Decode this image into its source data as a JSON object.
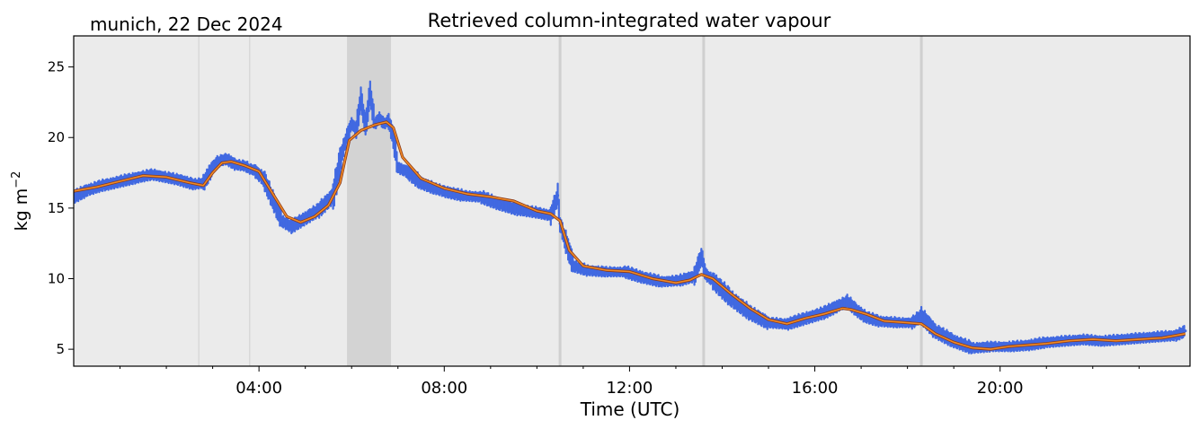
{
  "header": {
    "location_date": "munich, 22 Dec 2024",
    "title": "Retrieved column-integrated water vapour"
  },
  "chart_data": {
    "type": "scatter",
    "title": "Retrieved column-integrated water vapour",
    "subtitle": "munich, 22 Dec 2024",
    "xlabel": "Time (UTC)",
    "ylabel_main": "kg m",
    "ylabel_exp": "−2",
    "x_unit": "hours UTC",
    "xlim": [
      0,
      24.1
    ],
    "ylim": [
      3.8,
      27.2
    ],
    "x_ticks": [
      4,
      8,
      12,
      16,
      20
    ],
    "x_tick_labels": [
      "04:00",
      "08:00",
      "12:00",
      "16:00",
      "20:00"
    ],
    "y_ticks": [
      5,
      10,
      15,
      20,
      25
    ],
    "y_tick_labels": [
      "5",
      "10",
      "15",
      "20",
      "25"
    ],
    "grid": false,
    "background_color": "#ebebeb",
    "flagged_span": {
      "start": 5.9,
      "end": 6.85,
      "color": "#d3d3d3"
    },
    "gap_lines": [
      {
        "x": 2.7,
        "width": "thin"
      },
      {
        "x": 3.8,
        "width": "thin"
      },
      {
        "x": 10.5,
        "width": "thick"
      },
      {
        "x": 13.6,
        "width": "thick"
      },
      {
        "x": 18.3,
        "width": "thick"
      }
    ],
    "series": [
      {
        "role": "retrieval",
        "style": "scatter",
        "color": "#4169e1",
        "x": [
          0.0,
          0.3,
          0.6,
          1.0,
          1.4,
          1.7,
          2.0,
          2.3,
          2.6,
          2.8,
          3.0,
          3.1,
          3.3,
          3.5,
          3.7,
          3.8,
          3.9,
          4.1,
          4.3,
          4.5,
          4.7,
          5.0,
          5.3,
          5.6,
          5.8,
          5.9,
          6.0,
          6.1,
          6.2,
          6.3,
          6.4,
          6.5,
          6.6,
          6.7,
          6.8,
          6.9,
          7.0,
          7.2,
          7.5,
          7.8,
          8.0,
          8.4,
          8.8,
          9.2,
          9.6,
          10.0,
          10.3,
          10.45,
          10.5,
          10.6,
          10.8,
          11.1,
          11.5,
          11.9,
          12.3,
          12.7,
          13.1,
          13.4,
          13.55,
          13.65,
          13.8,
          14.2,
          14.6,
          15.0,
          15.4,
          15.8,
          16.2,
          16.5,
          16.7,
          16.9,
          17.1,
          17.4,
          17.8,
          18.1,
          18.3,
          18.6,
          19.0,
          19.4,
          19.8,
          20.2,
          20.6,
          21.0,
          21.4,
          21.8,
          22.2,
          22.6,
          23.0,
          23.4,
          23.8,
          24.0
        ],
        "y": [
          15.8,
          16.3,
          16.6,
          16.9,
          17.2,
          17.4,
          17.2,
          17.0,
          16.7,
          16.8,
          17.9,
          18.3,
          18.5,
          18.1,
          18.0,
          17.8,
          17.7,
          17.1,
          15.6,
          14.1,
          13.7,
          14.3,
          14.9,
          15.9,
          19.0,
          20.1,
          21.0,
          20.6,
          22.8,
          20.8,
          23.2,
          21.0,
          21.4,
          21.0,
          21.2,
          20.0,
          17.9,
          17.6,
          16.8,
          16.4,
          16.2,
          15.9,
          15.8,
          15.3,
          14.9,
          14.7,
          14.5,
          15.9,
          13.9,
          12.9,
          10.9,
          10.6,
          10.5,
          10.5,
          10.1,
          9.8,
          9.9,
          10.2,
          11.6,
          10.3,
          9.9,
          8.6,
          7.6,
          6.9,
          6.8,
          7.2,
          7.6,
          8.1,
          8.4,
          7.8,
          7.3,
          7.0,
          6.9,
          6.9,
          7.4,
          6.3,
          5.6,
          5.1,
          5.2,
          5.2,
          5.3,
          5.5,
          5.6,
          5.7,
          5.6,
          5.7,
          5.8,
          5.9,
          6.0,
          6.3
        ]
      },
      {
        "role": "smoothed",
        "style": "line",
        "color": "#f08a24",
        "x": [
          0.0,
          0.5,
          1.0,
          1.5,
          2.0,
          2.5,
          2.8,
          3.0,
          3.2,
          3.4,
          3.7,
          4.0,
          4.3,
          4.6,
          4.9,
          5.2,
          5.5,
          5.75,
          5.95,
          6.2,
          6.5,
          6.75,
          6.9,
          7.1,
          7.5,
          8.0,
          8.5,
          9.0,
          9.5,
          10.0,
          10.3,
          10.5,
          10.7,
          11.0,
          11.5,
          12.0,
          12.5,
          13.0,
          13.3,
          13.55,
          13.8,
          14.2,
          14.6,
          15.0,
          15.4,
          15.8,
          16.2,
          16.6,
          16.8,
          17.1,
          17.5,
          17.9,
          18.3,
          18.6,
          19.0,
          19.4,
          19.8,
          20.2,
          20.6,
          21.0,
          21.5,
          22.0,
          22.5,
          23.0,
          23.5,
          24.0
        ],
        "y": [
          16.2,
          16.5,
          16.9,
          17.3,
          17.2,
          16.8,
          16.6,
          17.5,
          18.2,
          18.3,
          18.0,
          17.6,
          16.0,
          14.4,
          14.0,
          14.4,
          15.2,
          16.8,
          19.8,
          20.5,
          20.9,
          21.1,
          20.7,
          18.6,
          17.1,
          16.4,
          16.0,
          15.8,
          15.5,
          14.8,
          14.6,
          14.1,
          12.0,
          10.9,
          10.6,
          10.5,
          10.0,
          9.7,
          9.9,
          10.3,
          10.0,
          8.9,
          7.9,
          7.1,
          6.8,
          7.2,
          7.5,
          7.9,
          7.8,
          7.5,
          7.0,
          6.9,
          6.8,
          6.1,
          5.5,
          5.1,
          5.0,
          5.2,
          5.3,
          5.4,
          5.6,
          5.7,
          5.6,
          5.7,
          5.8,
          6.1
        ]
      }
    ]
  }
}
